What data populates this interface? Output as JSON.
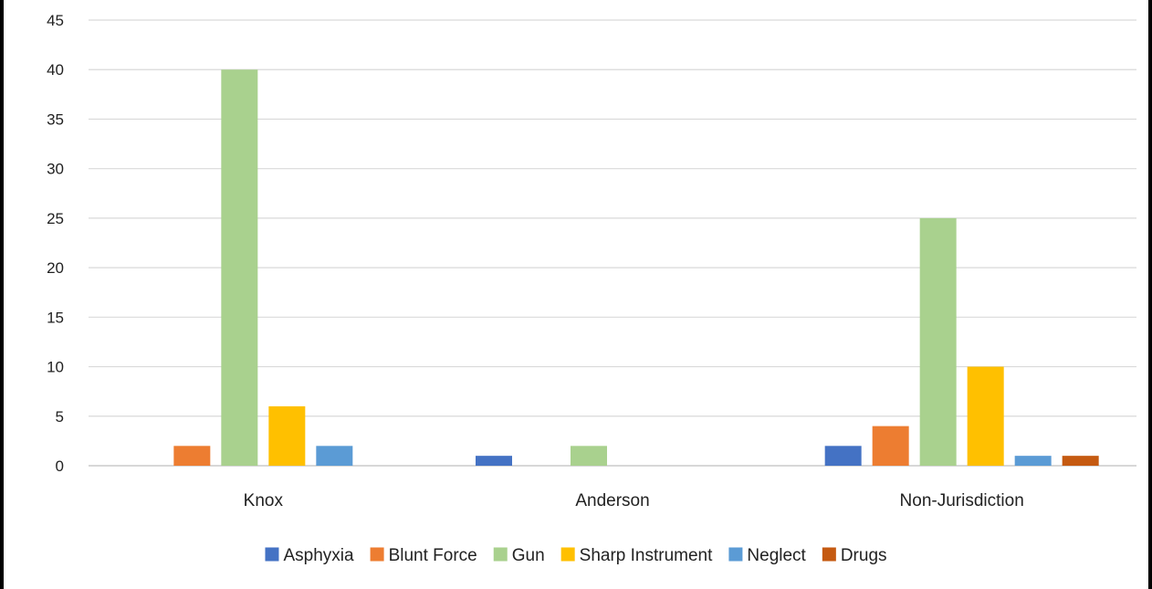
{
  "chart_data": {
    "type": "bar",
    "categories": [
      "Knox",
      "Anderson",
      "Non-Jurisdiction"
    ],
    "ylim": [
      0,
      45
    ],
    "yticks": [
      0,
      5,
      10,
      15,
      20,
      25,
      30,
      35,
      40,
      45
    ],
    "grid": true,
    "legend_position": "bottom",
    "series": [
      {
        "name": "Asphyxia",
        "color": "#4472C4",
        "values": [
          0,
          1,
          2
        ]
      },
      {
        "name": "Blunt Force",
        "color": "#ED7D31",
        "values": [
          2,
          0,
          4
        ]
      },
      {
        "name": "Gun",
        "color": "#A9D18E",
        "values": [
          40,
          2,
          25
        ]
      },
      {
        "name": "Sharp Instrument",
        "color": "#FFC000",
        "values": [
          6,
          0,
          10
        ]
      },
      {
        "name": "Neglect",
        "color": "#5B9BD5",
        "values": [
          2,
          0,
          1
        ]
      },
      {
        "name": "Drugs",
        "color": "#C55A11",
        "values": [
          0,
          0,
          1
        ]
      }
    ]
  }
}
